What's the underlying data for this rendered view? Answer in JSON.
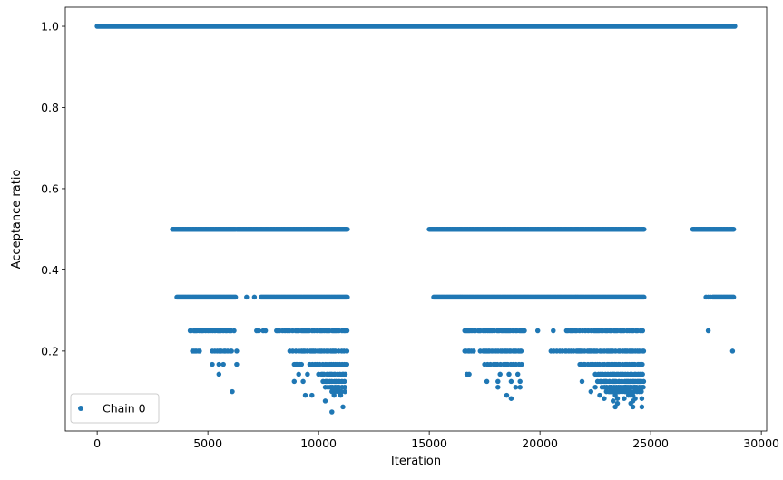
{
  "chart_data": {
    "type": "scatter",
    "title": "",
    "xlabel": "Iteration",
    "ylabel": "Acceptance ratio",
    "xlim": [
      -1440,
      30240
    ],
    "ylim": [
      0.003,
      1.047
    ],
    "xticks": [
      0,
      5000,
      10000,
      15000,
      20000,
      25000,
      30000
    ],
    "xtick_labels": [
      "0",
      "5000",
      "10000",
      "15000",
      "20000",
      "25000",
      "30000"
    ],
    "yticks": [
      0.2,
      0.4,
      0.6,
      0.8,
      1.0
    ],
    "ytick_labels": [
      "0.2",
      "0.4",
      "0.6",
      "0.8",
      "1.0"
    ],
    "grid": false,
    "legend": {
      "position": "lower left",
      "entries": [
        "Chain 0"
      ]
    },
    "series": [
      {
        "name": "Chain 0",
        "color": "#1f77b4",
        "marker": "point",
        "bands": [
          {
            "y": 1.0,
            "ranges": [
              [
                0,
                28800
              ]
            ],
            "mode": "continuous"
          },
          {
            "y": 0.5,
            "ranges": [
              [
                3400,
                6250
              ],
              [
                6300,
                11300
              ],
              [
                15000,
                24700
              ],
              [
                26900,
                28750
              ]
            ],
            "mode": "continuous"
          },
          {
            "y": 0.333,
            "ranges": [
              [
                3600,
                6250
              ],
              [
                7400,
                11300
              ],
              [
                15200,
                24700
              ],
              [
                27800,
                28750
              ]
            ],
            "mode": "continuous"
          },
          {
            "x": [
              3600,
              6750,
              7100,
              27500,
              27600,
              27700
            ],
            "y": 0.333,
            "mode": "points"
          },
          {
            "y": 0.25,
            "ranges": [
              [
                4200,
                6200
              ],
              [
                8100,
                11300
              ],
              [
                16600,
                19300
              ],
              [
                21200,
                24700
              ]
            ],
            "mode": "sparse"
          },
          {
            "x": [
              7200,
              7300,
              7500,
              7600,
              19900,
              20600,
              27600
            ],
            "y": 0.25,
            "mode": "points"
          },
          {
            "y": 0.2,
            "ranges": [
              [
                4300,
                4700
              ],
              [
                5200,
                6200
              ],
              [
                8700,
                11300
              ],
              [
                16600,
                17000
              ],
              [
                17300,
                19200
              ],
              [
                20500,
                24700
              ]
            ],
            "mode": "sparse"
          },
          {
            "x": [
              6300,
              28700
            ],
            "y": 0.2,
            "mode": "points"
          },
          {
            "y": 0.167,
            "ranges": [
              [
                8900,
                9300
              ],
              [
                9600,
                11300
              ],
              [
                17500,
                19200
              ],
              [
                21800,
                24700
              ]
            ],
            "mode": "sparse"
          },
          {
            "x": [
              5200,
              5500,
              5700,
              6300,
              22600
            ],
            "y": 0.167,
            "mode": "points"
          },
          {
            "y": 0.143,
            "ranges": [
              [
                10000,
                11300
              ],
              [
                22500,
                24700
              ]
            ],
            "mode": "sparse"
          },
          {
            "x": [
              5500,
              9100,
              9500,
              16700,
              16800,
              18200,
              18600,
              19000
            ],
            "y": 0.143,
            "mode": "points"
          },
          {
            "y": 0.125,
            "ranges": [
              [
                10200,
                11300
              ],
              [
                22600,
                24700
              ]
            ],
            "mode": "sparse"
          },
          {
            "x": [
              8900,
              9300,
              17600,
              18100,
              18700,
              19100,
              21900
            ],
            "y": 0.125,
            "mode": "points"
          },
          {
            "y": 0.111,
            "ranges": [
              [
                10300,
                11200
              ],
              [
                22800,
                24700
              ]
            ],
            "mode": "sparse"
          },
          {
            "x": [
              18100,
              18900,
              19100,
              22500
            ],
            "y": 0.111,
            "mode": "points"
          },
          {
            "y": 0.1,
            "ranges": [
              [
                10600,
                11200
              ],
              [
                23000,
                24700
              ]
            ],
            "mode": "sparse"
          },
          {
            "x": [
              6100,
              22300
            ],
            "y": 0.1,
            "mode": "points"
          },
          {
            "x": [
              9400,
              9700,
              10700,
              11000,
              18500,
              22700,
              23400,
              24000,
              24100,
              24200
            ],
            "y": 0.091,
            "mode": "points"
          },
          {
            "x": [
              18700,
              22900,
              23500,
              23800,
              24300,
              24600
            ],
            "y": 0.083,
            "mode": "points"
          },
          {
            "x": [
              10300,
              23300,
              24200
            ],
            "y": 0.077,
            "mode": "points"
          },
          {
            "x": [
              23500,
              24100
            ],
            "y": 0.071,
            "mode": "points"
          },
          {
            "x": [
              11100,
              23400,
              24200,
              24600
            ],
            "y": 0.0625,
            "mode": "points"
          },
          {
            "x": [
              10600
            ],
            "y": 0.05,
            "mode": "points"
          }
        ]
      }
    ]
  }
}
